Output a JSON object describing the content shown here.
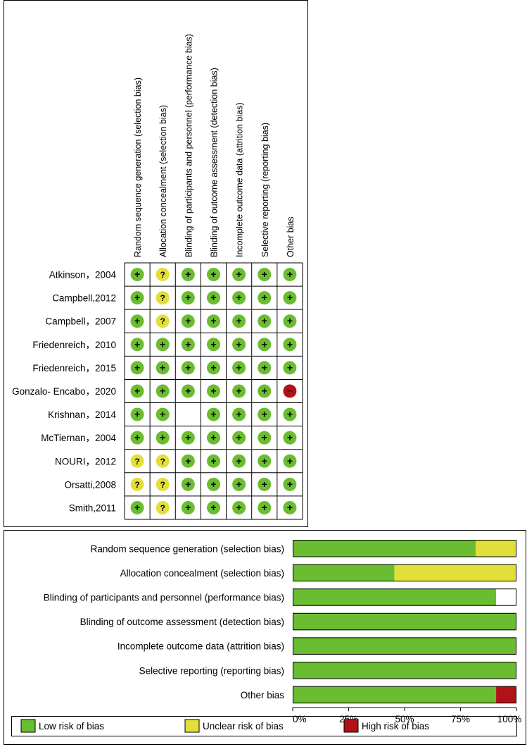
{
  "chart_data": [
    {
      "type": "table",
      "domains": [
        "Random sequence generation (selection bias)",
        "Allocation concealment (selection bias)",
        "Blinding of participants and personnel (performance bias)",
        "Blinding of outcome assessment (detection bias)",
        "Incomplete outcome data (attrition bias)",
        "Selective reporting (reporting bias)",
        "Other bias"
      ],
      "studies": [
        {
          "name": "Atkinson，2004",
          "ratings": [
            "low",
            "unclear",
            "low",
            "low",
            "low",
            "low",
            "low"
          ]
        },
        {
          "name": "Campbell,2012",
          "ratings": [
            "low",
            "unclear",
            "low",
            "low",
            "low",
            "low",
            "low"
          ]
        },
        {
          "name": "Campbell，2007",
          "ratings": [
            "low",
            "unclear",
            "low",
            "low",
            "low",
            "low",
            "low"
          ]
        },
        {
          "name": "Friedenreich，2010",
          "ratings": [
            "low",
            "low",
            "low",
            "low",
            "low",
            "low",
            "low"
          ]
        },
        {
          "name": "Friedenreich，2015",
          "ratings": [
            "low",
            "low",
            "low",
            "low",
            "low",
            "low",
            "low"
          ]
        },
        {
          "name": "Gonzalo- Encabo，2020",
          "ratings": [
            "low",
            "low",
            "low",
            "low",
            "low",
            "low",
            "high"
          ]
        },
        {
          "name": "Krishnan，2014",
          "ratings": [
            "low",
            "low",
            "none",
            "low",
            "low",
            "low",
            "low"
          ]
        },
        {
          "name": "McTiernan，2004",
          "ratings": [
            "low",
            "low",
            "low",
            "low",
            "low",
            "low",
            "low"
          ]
        },
        {
          "name": "NOURI，2012",
          "ratings": [
            "unclear",
            "unclear",
            "low",
            "low",
            "low",
            "low",
            "low"
          ]
        },
        {
          "name": "Orsatti,2008",
          "ratings": [
            "unclear",
            "unclear",
            "low",
            "low",
            "low",
            "low",
            "low"
          ]
        },
        {
          "name": "Smith,2011",
          "ratings": [
            "low",
            "unclear",
            "low",
            "low",
            "low",
            "low",
            "low"
          ]
        }
      ],
      "symbols": {
        "low": "+",
        "unclear": "?",
        "high": "−"
      }
    },
    {
      "type": "bar",
      "stacked": true,
      "orientation": "horizontal",
      "categories": [
        "Random sequence generation (selection bias)",
        "Allocation concealment (selection bias)",
        "Blinding of participants and personnel (performance bias)",
        "Blinding of outcome assessment (detection bias)",
        "Incomplete outcome data (attrition bias)",
        "Selective reporting (reporting bias)",
        "Other bias"
      ],
      "series": [
        {
          "name": "Low risk of bias",
          "key": "low",
          "color": "#6ABD30",
          "values": [
            81.8,
            45.5,
            90.9,
            100,
            100,
            100,
            90.9
          ]
        },
        {
          "name": "Unclear risk of bias",
          "key": "unclear",
          "color": "#E2DF3A",
          "values": [
            18.2,
            54.5,
            0,
            0,
            0,
            0,
            0
          ]
        },
        {
          "name": "High risk of bias",
          "key": "high",
          "color": "#B01217",
          "values": [
            0,
            0,
            0,
            0,
            0,
            0,
            9.1
          ]
        }
      ],
      "xlim": [
        0,
        100
      ],
      "xticks": [
        "0%",
        "25%",
        "50%",
        "75%",
        "100%"
      ],
      "legend_position": "bottom"
    }
  ],
  "colors": {
    "low": "#6ABD30",
    "unclear": "#E2DF3A",
    "high": "#B01217",
    "border": "#000000"
  }
}
